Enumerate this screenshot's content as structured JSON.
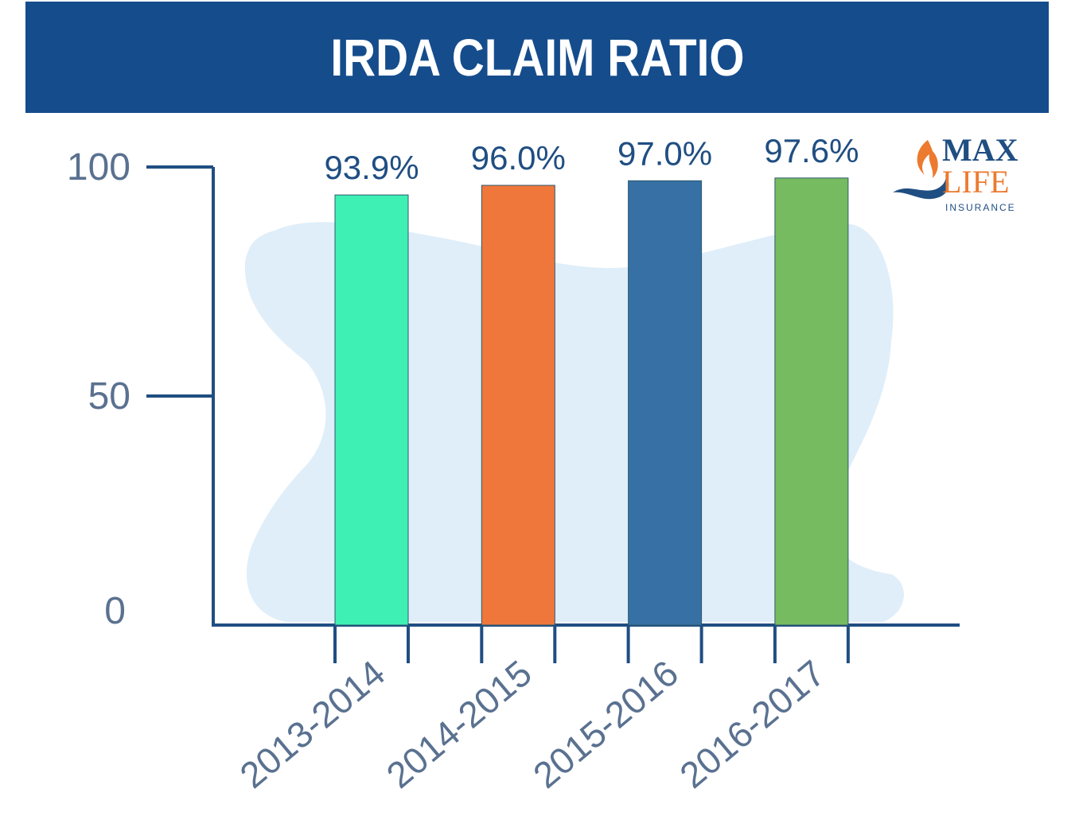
{
  "title": "IRDA CLAIM RATIO",
  "logo": {
    "line1": "MAX",
    "line2": "LIFE",
    "line3": "INSURANCE"
  },
  "colors": {
    "banner": "#154c8c",
    "axis": "#1f4e82",
    "tick_text": "#5a7190",
    "label_text": "#1f4e82",
    "blob": "#dfeef9",
    "logo_blue": "#1f4e82",
    "logo_orange": "#ec7a2f"
  },
  "chart_data": {
    "type": "bar",
    "title": "IRDA CLAIM RATIO",
    "categories": [
      "2013-2014",
      "2014-2015",
      "2015-2016",
      "2016-2017"
    ],
    "values": [
      93.9,
      96.0,
      97.0,
      97.6
    ],
    "value_labels": [
      "93.9%",
      "96.0%",
      "97.0%",
      "97.6%"
    ],
    "bar_colors": [
      "#3ef0b4",
      "#ef773b",
      "#3670a4",
      "#76bb5f"
    ],
    "yticks": [
      0,
      50,
      100
    ],
    "ylim": [
      0,
      100
    ],
    "xlabel": "",
    "ylabel": "",
    "grid": false
  }
}
